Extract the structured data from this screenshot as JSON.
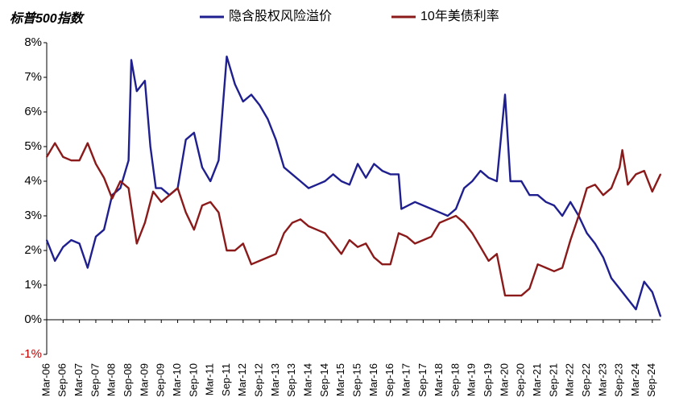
{
  "chart_data": {
    "type": "line",
    "title": "标普500指数",
    "xlabel": "",
    "ylabel": "",
    "ylim": [
      -1,
      8
    ],
    "y_ticks": [
      "-1%",
      "0%",
      "1%",
      "2%",
      "3%",
      "4%",
      "5%",
      "6%",
      "7%",
      "8%"
    ],
    "y_tick_values": [
      -1,
      0,
      1,
      2,
      3,
      4,
      5,
      6,
      7,
      8
    ],
    "negative_tick_color": "#c00000",
    "x_tick_labels": [
      "Mar-06",
      "Sep-06",
      "Mar-07",
      "Sep-07",
      "Mar-08",
      "Sep-08",
      "Mar-09",
      "Sep-09",
      "Mar-10",
      "Sep-10",
      "Mar-11",
      "Sep-11",
      "Mar-12",
      "Sep-12",
      "Mar-13",
      "Sep-13",
      "Mar-14",
      "Sep-14",
      "Mar-15",
      "Sep-15",
      "Mar-16",
      "Sep-16",
      "Mar-17",
      "Sep-17",
      "Mar-18",
      "Sep-18",
      "Mar-19",
      "Sep-19",
      "Mar-20",
      "Sep-20",
      "Mar-21",
      "Sep-21",
      "Mar-22",
      "Sep-22",
      "Mar-23",
      "Sep-23",
      "Mar-24",
      "Sep-24"
    ],
    "x_range": [
      "2006-03",
      "2024-12"
    ],
    "grid": false,
    "legend_position": "top",
    "series": [
      {
        "name": "隐含股权风险溢价",
        "color": "#1f1f8f",
        "points": [
          [
            "2006-03",
            2.3
          ],
          [
            "2006-06",
            1.7
          ],
          [
            "2006-09",
            2.1
          ],
          [
            "2006-12",
            2.3
          ],
          [
            "2007-03",
            2.2
          ],
          [
            "2007-06",
            1.5
          ],
          [
            "2007-09",
            2.4
          ],
          [
            "2007-12",
            2.6
          ],
          [
            "2008-03",
            3.6
          ],
          [
            "2008-06",
            3.8
          ],
          [
            "2008-09",
            4.6
          ],
          [
            "2008-10",
            7.5
          ],
          [
            "2008-12",
            6.6
          ],
          [
            "2009-03",
            6.9
          ],
          [
            "2009-05",
            5.0
          ],
          [
            "2009-07",
            3.8
          ],
          [
            "2009-09",
            3.8
          ],
          [
            "2009-12",
            3.6
          ],
          [
            "2010-03",
            3.8
          ],
          [
            "2010-06",
            5.2
          ],
          [
            "2010-09",
            5.4
          ],
          [
            "2010-12",
            4.4
          ],
          [
            "2011-03",
            4.0
          ],
          [
            "2011-06",
            4.6
          ],
          [
            "2011-09",
            7.6
          ],
          [
            "2011-12",
            6.8
          ],
          [
            "2012-03",
            6.3
          ],
          [
            "2012-06",
            6.5
          ],
          [
            "2012-09",
            6.2
          ],
          [
            "2012-12",
            5.8
          ],
          [
            "2013-03",
            5.2
          ],
          [
            "2013-06",
            4.4
          ],
          [
            "2013-09",
            4.2
          ],
          [
            "2013-12",
            4.0
          ],
          [
            "2014-03",
            3.8
          ],
          [
            "2014-06",
            3.9
          ],
          [
            "2014-09",
            4.0
          ],
          [
            "2014-12",
            4.2
          ],
          [
            "2015-03",
            4.0
          ],
          [
            "2015-06",
            3.9
          ],
          [
            "2015-09",
            4.5
          ],
          [
            "2015-12",
            4.1
          ],
          [
            "2016-03",
            4.5
          ],
          [
            "2016-06",
            4.3
          ],
          [
            "2016-09",
            4.2
          ],
          [
            "2016-12",
            4.2
          ],
          [
            "2017-01",
            3.2
          ],
          [
            "2017-06",
            3.4
          ],
          [
            "2017-12",
            3.2
          ],
          [
            "2018-03",
            3.1
          ],
          [
            "2018-06",
            3.0
          ],
          [
            "2018-09",
            3.2
          ],
          [
            "2018-12",
            3.8
          ],
          [
            "2019-03",
            4.0
          ],
          [
            "2019-06",
            4.3
          ],
          [
            "2019-09",
            4.1
          ],
          [
            "2019-12",
            4.0
          ],
          [
            "2020-03",
            6.5
          ],
          [
            "2020-05",
            4.0
          ],
          [
            "2020-09",
            4.0
          ],
          [
            "2020-12",
            3.6
          ],
          [
            "2021-03",
            3.6
          ],
          [
            "2021-06",
            3.4
          ],
          [
            "2021-09",
            3.3
          ],
          [
            "2021-12",
            3.0
          ],
          [
            "2022-03",
            3.4
          ],
          [
            "2022-06",
            3.0
          ],
          [
            "2022-09",
            2.5
          ],
          [
            "2022-12",
            2.2
          ],
          [
            "2023-03",
            1.8
          ],
          [
            "2023-06",
            1.2
          ],
          [
            "2023-09",
            0.9
          ],
          [
            "2023-12",
            0.6
          ],
          [
            "2024-03",
            0.3
          ],
          [
            "2024-06",
            1.1
          ],
          [
            "2024-09",
            0.8
          ],
          [
            "2024-12",
            0.1
          ]
        ]
      },
      {
        "name": "10年美债利率",
        "color": "#8b1a1a",
        "points": [
          [
            "2006-03",
            4.7
          ],
          [
            "2006-06",
            5.1
          ],
          [
            "2006-09",
            4.7
          ],
          [
            "2006-12",
            4.6
          ],
          [
            "2007-03",
            4.6
          ],
          [
            "2007-06",
            5.1
          ],
          [
            "2007-09",
            4.5
          ],
          [
            "2007-12",
            4.1
          ],
          [
            "2008-03",
            3.5
          ],
          [
            "2008-06",
            4.0
          ],
          [
            "2008-09",
            3.8
          ],
          [
            "2008-12",
            2.2
          ],
          [
            "2009-03",
            2.8
          ],
          [
            "2009-06",
            3.7
          ],
          [
            "2009-09",
            3.4
          ],
          [
            "2009-12",
            3.6
          ],
          [
            "2010-03",
            3.8
          ],
          [
            "2010-06",
            3.1
          ],
          [
            "2010-09",
            2.6
          ],
          [
            "2010-12",
            3.3
          ],
          [
            "2011-03",
            3.4
          ],
          [
            "2011-06",
            3.1
          ],
          [
            "2011-09",
            2.0
          ],
          [
            "2011-12",
            2.0
          ],
          [
            "2012-03",
            2.2
          ],
          [
            "2012-06",
            1.6
          ],
          [
            "2012-09",
            1.7
          ],
          [
            "2012-12",
            1.8
          ],
          [
            "2013-03",
            1.9
          ],
          [
            "2013-06",
            2.5
          ],
          [
            "2013-09",
            2.8
          ],
          [
            "2013-12",
            2.9
          ],
          [
            "2014-03",
            2.7
          ],
          [
            "2014-06",
            2.6
          ],
          [
            "2014-09",
            2.5
          ],
          [
            "2014-12",
            2.2
          ],
          [
            "2015-03",
            1.9
          ],
          [
            "2015-06",
            2.3
          ],
          [
            "2015-09",
            2.1
          ],
          [
            "2015-12",
            2.2
          ],
          [
            "2016-03",
            1.8
          ],
          [
            "2016-06",
            1.6
          ],
          [
            "2016-09",
            1.6
          ],
          [
            "2016-12",
            2.5
          ],
          [
            "2017-03",
            2.4
          ],
          [
            "2017-06",
            2.2
          ],
          [
            "2017-09",
            2.3
          ],
          [
            "2017-12",
            2.4
          ],
          [
            "2018-03",
            2.8
          ],
          [
            "2018-06",
            2.9
          ],
          [
            "2018-09",
            3.0
          ],
          [
            "2018-12",
            2.8
          ],
          [
            "2019-03",
            2.5
          ],
          [
            "2019-06",
            2.1
          ],
          [
            "2019-09",
            1.7
          ],
          [
            "2019-12",
            1.9
          ],
          [
            "2020-03",
            0.7
          ],
          [
            "2020-06",
            0.7
          ],
          [
            "2020-09",
            0.7
          ],
          [
            "2020-12",
            0.9
          ],
          [
            "2021-03",
            1.6
          ],
          [
            "2021-06",
            1.5
          ],
          [
            "2021-09",
            1.4
          ],
          [
            "2021-12",
            1.5
          ],
          [
            "2022-03",
            2.3
          ],
          [
            "2022-06",
            3.0
          ],
          [
            "2022-09",
            3.8
          ],
          [
            "2022-12",
            3.9
          ],
          [
            "2023-03",
            3.6
          ],
          [
            "2023-06",
            3.8
          ],
          [
            "2023-09",
            4.4
          ],
          [
            "2023-10",
            4.9
          ],
          [
            "2023-12",
            3.9
          ],
          [
            "2024-03",
            4.2
          ],
          [
            "2024-06",
            4.3
          ],
          [
            "2024-09",
            3.7
          ],
          [
            "2024-12",
            4.2
          ]
        ]
      }
    ]
  }
}
